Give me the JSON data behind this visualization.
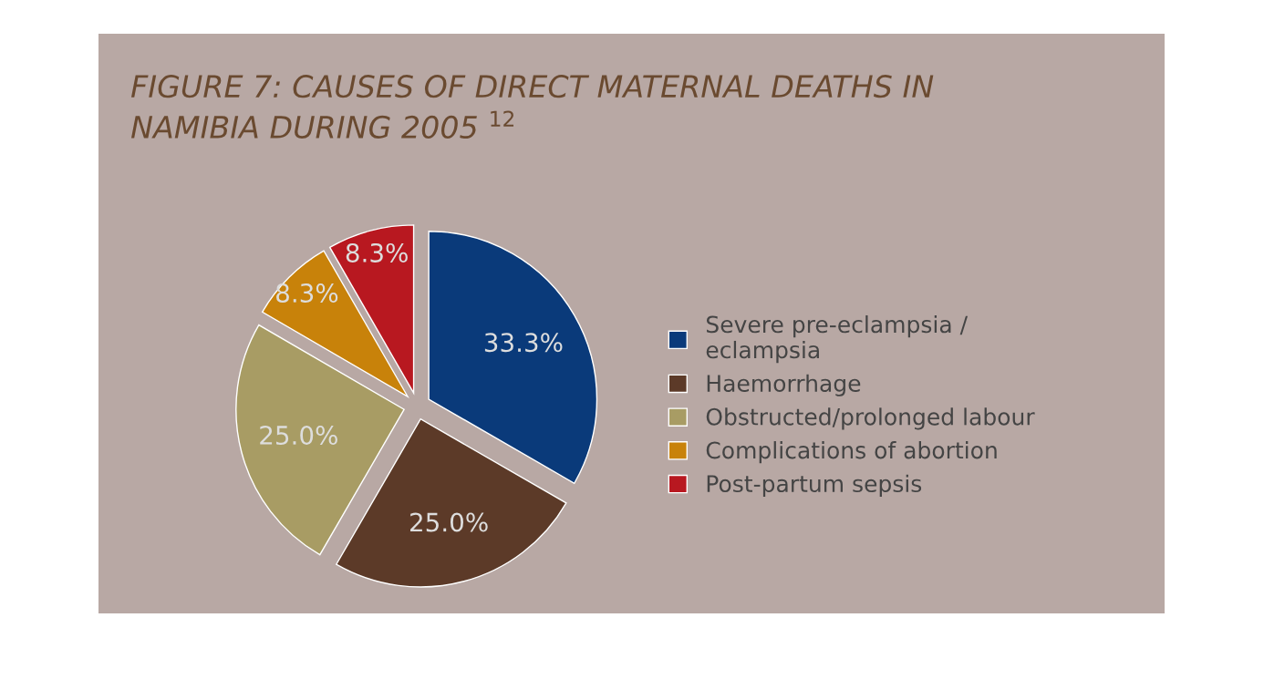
{
  "chart_data": {
    "type": "pie",
    "title": "FIGURE 7: CAUSES OF DIRECT MATERNAL DEATHS IN\nNAMIBIA DURING 2005 $^{12}$",
    "categories": [
      "Severe pre-eclampsia /\neclampsia",
      "Haemorrhage",
      "Obstructed/prolonged labour",
      "Complications of abortion",
      "Post-partum sepsis"
    ],
    "values": [
      33.3,
      25.0,
      25.0,
      8.3,
      8.3
    ],
    "colors": [
      "#0a3a7a",
      "#5c3a28",
      "#a89c64",
      "#c8820a",
      "#b81820"
    ],
    "value_labels": [
      "33.3%",
      "25.0%",
      "25.0%",
      "8.3%",
      "8.3%"
    ],
    "legend": "right"
  }
}
